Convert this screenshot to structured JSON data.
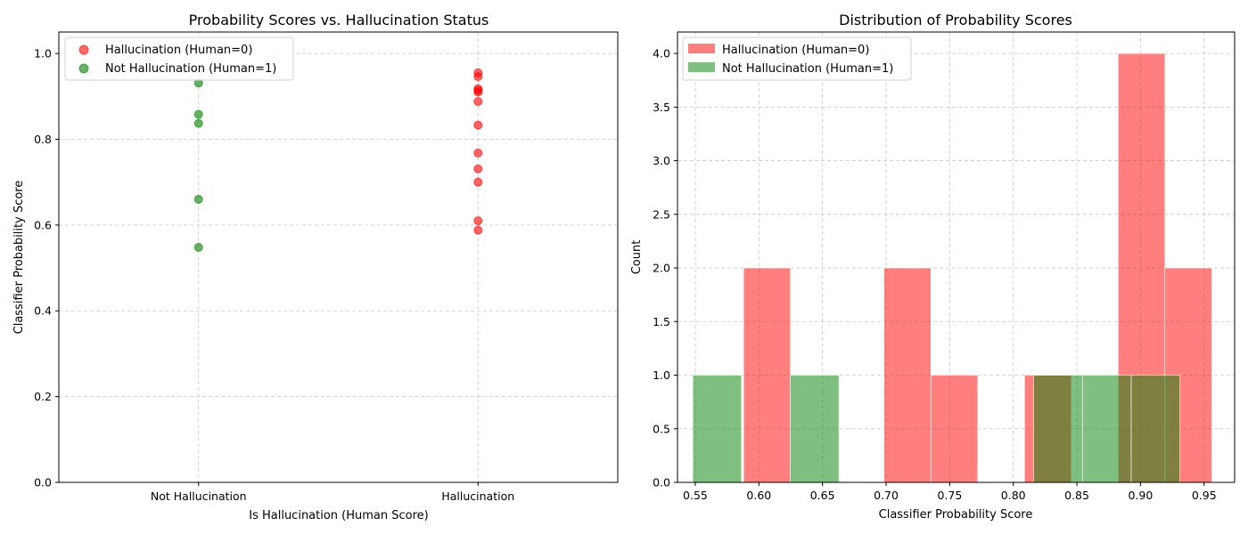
{
  "colors": {
    "hallucination": "#ff0000",
    "not_hallucination": "#008000",
    "grid": "#b0b0b0"
  },
  "chart_data": [
    {
      "type": "scatter",
      "title": "Probability Scores vs. Hallucination Status",
      "xlabel": "Is Hallucination (Human Score)",
      "ylabel": "Classifier Probability Score",
      "categories": [
        "Not Hallucination",
        "Hallucination"
      ],
      "xlim": [
        -0.5,
        1.5
      ],
      "ylim": [
        0,
        1.05
      ],
      "yticks": [
        0.0,
        0.2,
        0.4,
        0.6,
        0.8,
        1.0
      ],
      "ytick_labels": [
        "0.0",
        "0.2",
        "0.4",
        "0.6",
        "0.8",
        "1.0"
      ],
      "grid": true,
      "legend_position": "top-left",
      "series": [
        {
          "name": "Hallucination (Human=0)",
          "color": "#ff0000",
          "category": "Hallucination",
          "values": [
            0.955,
            0.946,
            0.918,
            0.914,
            0.91,
            0.888,
            0.833,
            0.768,
            0.731,
            0.7,
            0.61,
            0.588
          ]
        },
        {
          "name": "Not Hallucination (Human=1)",
          "color": "#008000",
          "category": "Not Hallucination",
          "values": [
            0.931,
            0.858,
            0.837,
            0.66,
            0.548
          ]
        }
      ]
    },
    {
      "type": "bar",
      "subtype": "histogram",
      "title": "Distribution of Probability Scores",
      "xlabel": "Classifier Probability Score",
      "ylabel": "Count",
      "xlim": [
        0.536,
        0.974
      ],
      "ylim": [
        0,
        4.2
      ],
      "xticks": [
        0.55,
        0.6,
        0.65,
        0.7,
        0.75,
        0.8,
        0.85,
        0.9,
        0.95
      ],
      "xtick_labels": [
        "0.55",
        "0.60",
        "0.65",
        "0.70",
        "0.75",
        "0.80",
        "0.85",
        "0.90",
        "0.95"
      ],
      "yticks": [
        0.0,
        0.5,
        1.0,
        1.5,
        2.0,
        2.5,
        3.0,
        3.5,
        4.0
      ],
      "ytick_labels": [
        "0.0",
        "0.5",
        "1.0",
        "1.5",
        "2.0",
        "2.5",
        "3.0",
        "3.5",
        "4.0"
      ],
      "grid": true,
      "legend_position": "top-left",
      "series": [
        {
          "name": "Hallucination (Human=0)",
          "color": "#ff0000",
          "alpha": 0.5,
          "bin_edges": [
            0.588,
            0.6248,
            0.6616,
            0.6984,
            0.7352,
            0.772,
            0.8088,
            0.8456,
            0.8824,
            0.9192,
            0.956
          ],
          "counts": [
            2,
            0,
            0,
            2,
            1,
            0,
            1,
            0,
            4,
            2
          ]
        },
        {
          "name": "Not Hallucination (Human=1)",
          "color": "#008000",
          "alpha": 0.5,
          "bin_edges": [
            0.548,
            0.5863,
            0.6246,
            0.6629,
            0.7012,
            0.7395,
            0.7778,
            0.8161,
            0.8544,
            0.8927,
            0.931
          ],
          "counts": [
            1,
            0,
            1,
            0,
            0,
            0,
            0,
            1,
            1,
            1
          ]
        }
      ]
    }
  ]
}
